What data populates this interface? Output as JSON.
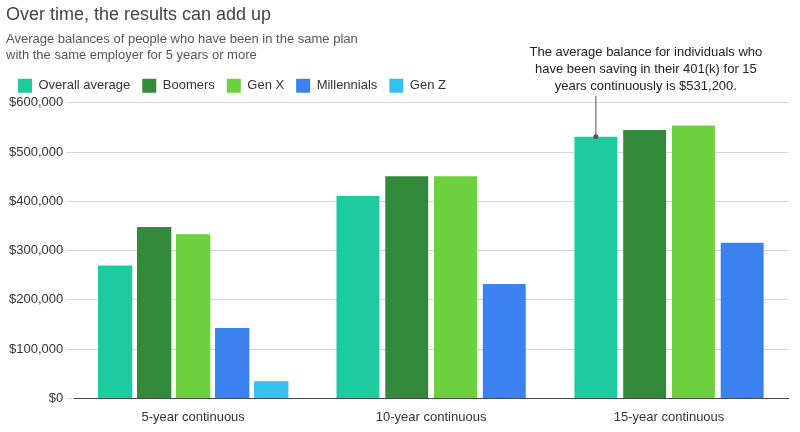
{
  "chart_data": {
    "type": "bar",
    "title": "Over time, the results can add up",
    "subtitle": [
      "Average balances of people who have been in the same plan",
      "with the same employer for 5 years or more"
    ],
    "categories": [
      "5-year continuous",
      "10-year continuous",
      "15-year continuous"
    ],
    "series": [
      {
        "name": "Overall average",
        "color": "#1ecba0",
        "values": [
          270000,
          411000,
          531200
        ]
      },
      {
        "name": "Boomers",
        "color": "#338a3a",
        "values": [
          348000,
          451000,
          545000
        ]
      },
      {
        "name": "Gen X",
        "color": "#6dd13f",
        "values": [
          333000,
          451000,
          554000
        ]
      },
      {
        "name": "Millennials",
        "color": "#3b82f0",
        "values": [
          143000,
          232000,
          316000
        ]
      },
      {
        "name": "Gen Z",
        "color": "#36c0ef",
        "values": [
          35000,
          null,
          null
        ]
      }
    ],
    "ylim": [
      0,
      600000
    ],
    "yticks": [
      {
        "value": 0,
        "label": "$0"
      },
      {
        "value": 100000,
        "label": "$100,000"
      },
      {
        "value": 200000,
        "label": "$200,000"
      },
      {
        "value": 300000,
        "label": "$300,000"
      },
      {
        "value": 400000,
        "label": "$400,000"
      },
      {
        "value": 500000,
        "label": "$500,000"
      },
      {
        "value": 600000,
        "label": "$600,000"
      }
    ],
    "grid": true,
    "legend": "top-left",
    "annotations": [
      {
        "text": [
          "The average balance for individuals who",
          "have been saving in their 401(k) for 15",
          "years continuously is $531,200."
        ],
        "category": "15-year continuous",
        "series": "Overall average"
      }
    ]
  }
}
